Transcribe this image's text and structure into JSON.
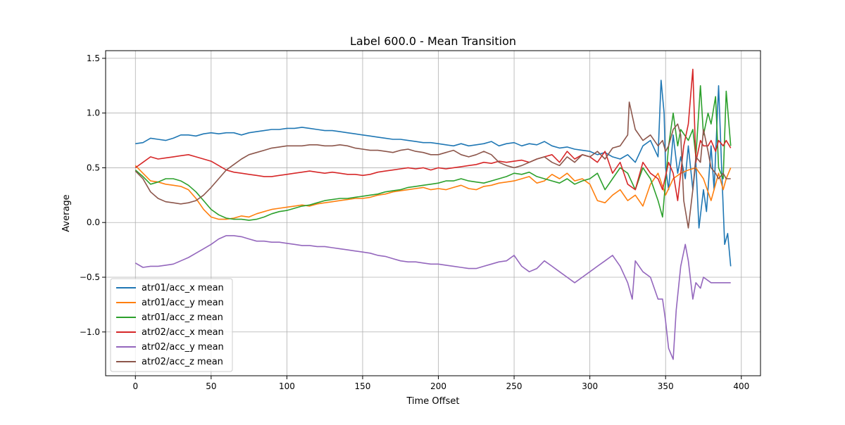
{
  "chart_data": {
    "type": "line",
    "title": "Label 600.0 - Mean Transition",
    "xlabel": "Time Offset",
    "ylabel": "Average",
    "xlim": [
      -19.65,
      412.65
    ],
    "ylim": [
      -1.4,
      1.57
    ],
    "xticks": [
      0,
      50,
      100,
      150,
      200,
      250,
      300,
      350,
      400
    ],
    "yticks": [
      -1.0,
      -0.5,
      0.0,
      0.5,
      1.0,
      1.5
    ],
    "xtick_labels": [
      "0",
      "50",
      "100",
      "150",
      "200",
      "250",
      "300",
      "350",
      "400"
    ],
    "ytick_labels": [
      "−1.0",
      "−0.5",
      "0.0",
      "0.5",
      "1.0",
      "1.5"
    ],
    "grid": true,
    "legend_position": "lower-left",
    "series": [
      {
        "name": "atr01/acc_x mean",
        "color": "#1f77b4",
        "x": [
          0,
          5,
          10,
          15,
          20,
          25,
          30,
          35,
          40,
          45,
          50,
          55,
          60,
          65,
          70,
          75,
          80,
          85,
          90,
          95,
          100,
          105,
          110,
          115,
          120,
          125,
          130,
          135,
          140,
          145,
          150,
          155,
          160,
          165,
          170,
          175,
          180,
          185,
          190,
          195,
          200,
          205,
          210,
          215,
          220,
          225,
          230,
          235,
          240,
          245,
          250,
          255,
          260,
          265,
          270,
          275,
          280,
          285,
          290,
          295,
          300,
          305,
          310,
          315,
          320,
          325,
          330,
          335,
          340,
          345,
          347,
          349,
          350,
          352,
          355,
          358,
          360,
          363,
          365,
          368,
          370,
          372,
          375,
          377,
          380,
          382,
          385,
          387,
          389,
          391,
          393
        ],
        "values": [
          0.72,
          0.73,
          0.77,
          0.76,
          0.75,
          0.77,
          0.8,
          0.8,
          0.79,
          0.81,
          0.82,
          0.81,
          0.82,
          0.82,
          0.8,
          0.82,
          0.83,
          0.84,
          0.85,
          0.85,
          0.86,
          0.86,
          0.87,
          0.86,
          0.85,
          0.84,
          0.84,
          0.83,
          0.82,
          0.81,
          0.8,
          0.79,
          0.78,
          0.77,
          0.76,
          0.76,
          0.75,
          0.74,
          0.73,
          0.73,
          0.72,
          0.71,
          0.7,
          0.72,
          0.7,
          0.71,
          0.72,
          0.74,
          0.7,
          0.72,
          0.73,
          0.7,
          0.72,
          0.71,
          0.74,
          0.7,
          0.68,
          0.69,
          0.67,
          0.66,
          0.65,
          0.62,
          0.64,
          0.6,
          0.58,
          0.62,
          0.55,
          0.7,
          0.75,
          0.6,
          1.3,
          1.0,
          0.5,
          0.3,
          0.8,
          0.45,
          0.6,
          0.4,
          0.7,
          0.3,
          0.55,
          -0.05,
          0.3,
          0.1,
          0.7,
          0.3,
          1.25,
          0.5,
          -0.2,
          -0.1,
          -0.4
        ]
      },
      {
        "name": "atr01/acc_y mean",
        "color": "#ff7f0e",
        "x": [
          0,
          5,
          10,
          15,
          20,
          25,
          30,
          35,
          40,
          45,
          50,
          55,
          60,
          65,
          70,
          75,
          80,
          85,
          90,
          95,
          100,
          105,
          110,
          115,
          120,
          125,
          130,
          135,
          140,
          145,
          150,
          155,
          160,
          165,
          170,
          175,
          180,
          185,
          190,
          195,
          200,
          205,
          210,
          215,
          220,
          225,
          230,
          235,
          240,
          245,
          250,
          255,
          260,
          265,
          270,
          275,
          280,
          285,
          290,
          295,
          300,
          305,
          310,
          315,
          320,
          325,
          330,
          335,
          340,
          345,
          350,
          355,
          360,
          365,
          370,
          375,
          380,
          385,
          388,
          390,
          393
        ],
        "values": [
          0.52,
          0.45,
          0.38,
          0.37,
          0.35,
          0.34,
          0.33,
          0.3,
          0.22,
          0.12,
          0.05,
          0.03,
          0.03,
          0.04,
          0.06,
          0.05,
          0.08,
          0.1,
          0.12,
          0.13,
          0.14,
          0.15,
          0.16,
          0.15,
          0.17,
          0.18,
          0.19,
          0.2,
          0.21,
          0.22,
          0.22,
          0.23,
          0.25,
          0.26,
          0.28,
          0.29,
          0.3,
          0.31,
          0.32,
          0.3,
          0.31,
          0.3,
          0.32,
          0.34,
          0.31,
          0.3,
          0.33,
          0.34,
          0.36,
          0.37,
          0.38,
          0.4,
          0.42,
          0.36,
          0.38,
          0.44,
          0.4,
          0.45,
          0.38,
          0.4,
          0.35,
          0.2,
          0.18,
          0.25,
          0.3,
          0.2,
          0.25,
          0.15,
          0.35,
          0.45,
          0.25,
          0.4,
          0.45,
          0.48,
          0.5,
          0.4,
          0.2,
          0.45,
          0.3,
          0.4,
          0.5
        ]
      },
      {
        "name": "atr01/acc_z mean",
        "color": "#2ca02c",
        "x": [
          0,
          5,
          10,
          15,
          20,
          25,
          30,
          35,
          40,
          45,
          50,
          55,
          60,
          65,
          70,
          75,
          80,
          85,
          90,
          95,
          100,
          105,
          110,
          115,
          120,
          125,
          130,
          135,
          140,
          145,
          150,
          155,
          160,
          165,
          170,
          175,
          180,
          185,
          190,
          195,
          200,
          205,
          210,
          215,
          220,
          225,
          230,
          235,
          240,
          245,
          250,
          255,
          260,
          265,
          270,
          275,
          280,
          285,
          290,
          295,
          300,
          305,
          310,
          315,
          320,
          325,
          330,
          335,
          340,
          345,
          348,
          352,
          355,
          358,
          360,
          365,
          368,
          370,
          373,
          375,
          378,
          380,
          383,
          385,
          388,
          390,
          393
        ],
        "values": [
          0.48,
          0.42,
          0.35,
          0.37,
          0.4,
          0.4,
          0.38,
          0.34,
          0.28,
          0.2,
          0.12,
          0.07,
          0.04,
          0.03,
          0.03,
          0.02,
          0.03,
          0.05,
          0.08,
          0.1,
          0.11,
          0.13,
          0.15,
          0.16,
          0.18,
          0.2,
          0.21,
          0.22,
          0.22,
          0.23,
          0.24,
          0.25,
          0.26,
          0.28,
          0.29,
          0.3,
          0.32,
          0.33,
          0.34,
          0.35,
          0.36,
          0.38,
          0.38,
          0.4,
          0.38,
          0.37,
          0.36,
          0.38,
          0.4,
          0.42,
          0.45,
          0.44,
          0.46,
          0.42,
          0.4,
          0.38,
          0.36,
          0.4,
          0.35,
          0.38,
          0.4,
          0.45,
          0.3,
          0.4,
          0.5,
          0.45,
          0.3,
          0.5,
          0.4,
          0.2,
          0.05,
          0.7,
          1.0,
          0.7,
          0.85,
          0.75,
          0.85,
          0.6,
          1.25,
          0.8,
          1.0,
          0.9,
          1.15,
          0.5,
          0.4,
          1.2,
          0.7
        ]
      },
      {
        "name": "atr02/acc_x mean",
        "color": "#d62728",
        "x": [
          0,
          5,
          10,
          15,
          20,
          25,
          30,
          35,
          40,
          45,
          50,
          55,
          60,
          65,
          70,
          75,
          80,
          85,
          90,
          95,
          100,
          105,
          110,
          115,
          120,
          125,
          130,
          135,
          140,
          145,
          150,
          155,
          160,
          165,
          170,
          175,
          180,
          185,
          190,
          195,
          200,
          205,
          210,
          215,
          220,
          225,
          230,
          235,
          240,
          245,
          250,
          255,
          260,
          265,
          270,
          275,
          280,
          285,
          290,
          295,
          300,
          305,
          310,
          315,
          320,
          325,
          330,
          335,
          340,
          345,
          348,
          352,
          355,
          358,
          360,
          362,
          365,
          368,
          370,
          373,
          375,
          378,
          380,
          383,
          385,
          388,
          390,
          393
        ],
        "values": [
          0.5,
          0.55,
          0.6,
          0.58,
          0.59,
          0.6,
          0.61,
          0.62,
          0.6,
          0.58,
          0.56,
          0.52,
          0.48,
          0.46,
          0.45,
          0.44,
          0.43,
          0.42,
          0.42,
          0.43,
          0.44,
          0.45,
          0.46,
          0.47,
          0.46,
          0.45,
          0.46,
          0.45,
          0.44,
          0.44,
          0.43,
          0.44,
          0.46,
          0.47,
          0.48,
          0.49,
          0.5,
          0.49,
          0.5,
          0.48,
          0.5,
          0.49,
          0.5,
          0.51,
          0.52,
          0.53,
          0.55,
          0.54,
          0.56,
          0.55,
          0.56,
          0.57,
          0.55,
          0.58,
          0.6,
          0.62,
          0.55,
          0.65,
          0.58,
          0.62,
          0.6,
          0.55,
          0.65,
          0.45,
          0.55,
          0.35,
          0.3,
          0.55,
          0.45,
          0.4,
          0.3,
          0.55,
          0.45,
          0.2,
          0.45,
          0.7,
          0.9,
          1.4,
          0.55,
          0.75,
          0.7,
          0.7,
          0.75,
          0.65,
          0.75,
          0.7,
          0.75,
          0.68
        ]
      },
      {
        "name": "atr02/acc_y mean",
        "color": "#9467bd",
        "x": [
          0,
          5,
          10,
          15,
          20,
          25,
          30,
          35,
          40,
          45,
          50,
          55,
          60,
          65,
          70,
          75,
          80,
          85,
          90,
          95,
          100,
          105,
          110,
          115,
          120,
          125,
          130,
          135,
          140,
          145,
          150,
          155,
          160,
          165,
          170,
          175,
          180,
          185,
          190,
          195,
          200,
          205,
          210,
          215,
          220,
          225,
          230,
          235,
          240,
          245,
          250,
          255,
          260,
          265,
          270,
          275,
          280,
          285,
          290,
          295,
          300,
          305,
          310,
          315,
          320,
          325,
          328,
          330,
          335,
          340,
          345,
          348,
          350,
          352,
          355,
          357,
          360,
          363,
          365,
          368,
          370,
          373,
          375,
          380,
          385,
          390,
          393
        ],
        "values": [
          -0.37,
          -0.41,
          -0.4,
          -0.4,
          -0.39,
          -0.38,
          -0.35,
          -0.32,
          -0.28,
          -0.24,
          -0.2,
          -0.15,
          -0.12,
          -0.12,
          -0.13,
          -0.15,
          -0.17,
          -0.17,
          -0.18,
          -0.18,
          -0.19,
          -0.2,
          -0.21,
          -0.21,
          -0.22,
          -0.22,
          -0.23,
          -0.24,
          -0.25,
          -0.26,
          -0.27,
          -0.28,
          -0.3,
          -0.31,
          -0.33,
          -0.35,
          -0.36,
          -0.36,
          -0.37,
          -0.38,
          -0.38,
          -0.39,
          -0.4,
          -0.41,
          -0.42,
          -0.42,
          -0.4,
          -0.38,
          -0.36,
          -0.35,
          -0.3,
          -0.4,
          -0.45,
          -0.42,
          -0.35,
          -0.4,
          -0.45,
          -0.5,
          -0.55,
          -0.5,
          -0.45,
          -0.4,
          -0.35,
          -0.3,
          -0.4,
          -0.55,
          -0.7,
          -0.35,
          -0.45,
          -0.5,
          -0.7,
          -0.7,
          -0.9,
          -1.15,
          -1.25,
          -0.8,
          -0.4,
          -0.2,
          -0.35,
          -0.7,
          -0.55,
          -0.6,
          -0.5,
          -0.55,
          -0.55,
          -0.55,
          -0.55
        ]
      },
      {
        "name": "atr02/acc_z mean",
        "color": "#8c564b",
        "x": [
          0,
          5,
          10,
          15,
          20,
          25,
          30,
          35,
          40,
          45,
          50,
          55,
          60,
          65,
          70,
          75,
          80,
          85,
          90,
          95,
          100,
          105,
          110,
          115,
          120,
          125,
          130,
          135,
          140,
          145,
          150,
          155,
          160,
          165,
          170,
          175,
          180,
          185,
          190,
          195,
          200,
          205,
          210,
          215,
          220,
          225,
          230,
          235,
          240,
          245,
          250,
          255,
          260,
          265,
          270,
          275,
          280,
          285,
          290,
          295,
          300,
          305,
          310,
          315,
          320,
          325,
          326,
          330,
          335,
          340,
          345,
          348,
          350,
          352,
          355,
          358,
          360,
          362,
          365,
          368,
          370,
          373,
          375,
          378,
          380,
          383,
          385,
          388,
          390,
          393
        ],
        "values": [
          0.47,
          0.4,
          0.28,
          0.22,
          0.19,
          0.18,
          0.17,
          0.18,
          0.2,
          0.25,
          0.32,
          0.4,
          0.48,
          0.53,
          0.58,
          0.62,
          0.64,
          0.66,
          0.68,
          0.69,
          0.7,
          0.7,
          0.7,
          0.71,
          0.71,
          0.7,
          0.7,
          0.71,
          0.7,
          0.68,
          0.67,
          0.66,
          0.66,
          0.65,
          0.64,
          0.66,
          0.67,
          0.65,
          0.64,
          0.62,
          0.62,
          0.64,
          0.66,
          0.62,
          0.6,
          0.62,
          0.65,
          0.62,
          0.55,
          0.52,
          0.5,
          0.52,
          0.55,
          0.58,
          0.6,
          0.55,
          0.52,
          0.6,
          0.55,
          0.62,
          0.6,
          0.65,
          0.58,
          0.68,
          0.7,
          0.8,
          1.1,
          0.85,
          0.75,
          0.8,
          0.7,
          0.75,
          0.65,
          0.7,
          0.85,
          0.9,
          0.8,
          0.2,
          -0.05,
          0.3,
          0.6,
          0.55,
          0.85,
          0.65,
          0.5,
          0.45,
          0.4,
          0.45,
          0.4,
          0.4
        ]
      }
    ]
  }
}
